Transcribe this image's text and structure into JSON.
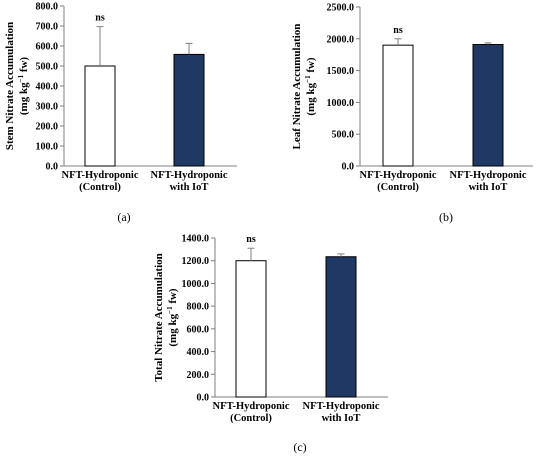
{
  "colors": {
    "control": "#ffffff",
    "iot": "#1f3864",
    "axis": "#7f7f7f",
    "bar_stroke": "#000000",
    "error_bar": "#7f7f7f"
  },
  "chart_data": [
    {
      "type": "bar",
      "panel_label": "(a)",
      "title": "",
      "categories": [
        [
          "NFT-Hydroponic",
          "(Control)"
        ],
        [
          "NFT-Hydroponic",
          "with IoT"
        ]
      ],
      "ylabel": "Stem Nitrate Accumulation",
      "yunit": [
        "(mg kg",
        "−1",
        " fw)"
      ],
      "ylim": [
        0,
        800
      ],
      "yticks": [
        0,
        100,
        200,
        300,
        400,
        500,
        600,
        700,
        800
      ],
      "ytick_labels": [
        "0.0",
        "100.0",
        "200.0",
        "300.0",
        "400.0",
        "500.0",
        "600.0",
        "700.0",
        "800.0"
      ],
      "values": [
        500,
        558
      ],
      "errors": [
        197,
        55
      ],
      "annotations": [
        "ns"
      ],
      "grid": false
    },
    {
      "type": "bar",
      "panel_label": "(b)",
      "title": "",
      "categories": [
        [
          "NFT-Hydroponic",
          "(Control)"
        ],
        [
          "NFT-Hydroponic",
          "with IoT"
        ]
      ],
      "ylabel": "Leaf Nitrate Accumulation",
      "yunit": [
        "(mg kg",
        "−1",
        " fw)"
      ],
      "ylim": [
        0,
        2500
      ],
      "yticks": [
        0,
        500,
        1000,
        1500,
        2000,
        2500
      ],
      "ytick_labels": [
        "0.0",
        "500.0",
        "1000.0",
        "1500.0",
        "2000.0",
        "2500.0"
      ],
      "values": [
        1900,
        1910
      ],
      "errors": [
        100,
        25
      ],
      "annotations": [
        "ns"
      ],
      "grid": false
    },
    {
      "type": "bar",
      "panel_label": "(c)",
      "title": "",
      "categories": [
        [
          "NFT-Hydroponic",
          "(Control)"
        ],
        [
          "NFT-Hydroponic",
          "with IoT"
        ]
      ],
      "ylabel": "Total Nitrate Accumulation",
      "yunit": [
        "(mg kg",
        "−1",
        " fw)"
      ],
      "ylim": [
        0,
        1400
      ],
      "yticks": [
        0,
        200,
        400,
        600,
        800,
        1000,
        1200,
        1400
      ],
      "ytick_labels": [
        "0.0",
        "200.0",
        "400.0",
        "600.0",
        "800.0",
        "1000.0",
        "1200.0",
        "1400.0"
      ],
      "values": [
        1200,
        1235
      ],
      "errors": [
        110,
        25
      ],
      "annotations": [
        "ns"
      ],
      "grid": false
    }
  ]
}
